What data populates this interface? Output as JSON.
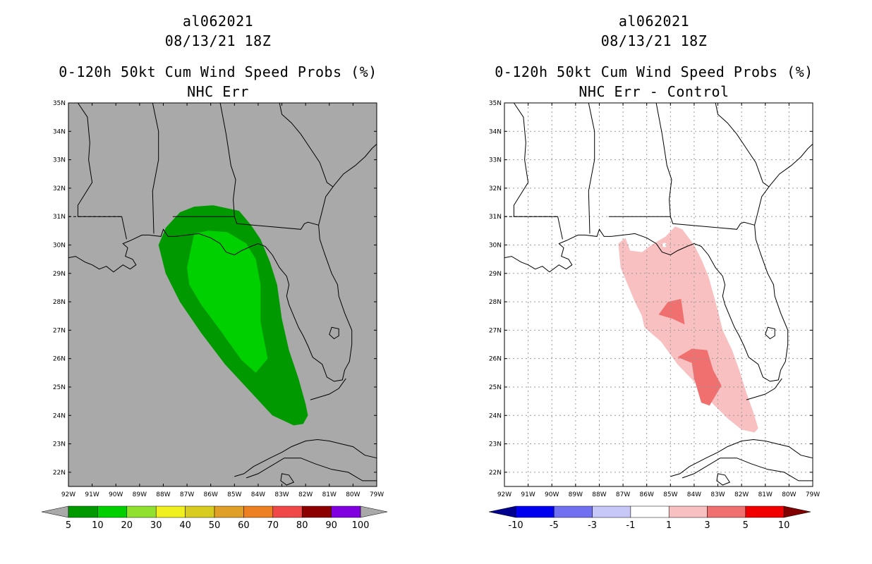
{
  "panels": [
    {
      "storm_id": "al062021",
      "datetime": "08/13/21 18Z",
      "product": "0-120h 50kt Cum Wind Speed Probs (%)",
      "subtitle": "NHC Err",
      "background_color": "#a9a9a9",
      "legend": {
        "colors": [
          "#009a00",
          "#00d000",
          "#90e030",
          "#f0f020",
          "#d8cc20",
          "#e0a028",
          "#ec8022",
          "#f04848",
          "#8c0000",
          "#8000e0"
        ],
        "labels": [
          "5",
          "10",
          "20",
          "30",
          "40",
          "50",
          "60",
          "70",
          "80",
          "90",
          "100"
        ],
        "end_color": "#a9a9a9"
      }
    },
    {
      "storm_id": "al062021",
      "datetime": "08/13/21 18Z",
      "product": "0-120h 50kt Cum Wind Speed Probs (%)",
      "subtitle": "NHC Err - Control",
      "background_color": "#ffffff",
      "legend": {
        "colors": [
          "#0000f0",
          "#7070f0",
          "#c8c8f8",
          "#ffffff",
          "#f8c0c0",
          "#f07070",
          "#f00000"
        ],
        "labels": [
          "-10",
          "-5",
          "-3",
          "-1",
          "1",
          "3",
          "5",
          "10"
        ],
        "start_color": "#000090",
        "end_color": "#800000"
      }
    }
  ],
  "axes": {
    "lat_labels": [
      "35N",
      "34N",
      "33N",
      "32N",
      "31N",
      "30N",
      "29N",
      "28N",
      "27N",
      "26N",
      "25N",
      "24N",
      "23N",
      "22N"
    ],
    "lon_labels": [
      "92W",
      "91W",
      "90W",
      "89W",
      "88W",
      "87W",
      "86W",
      "85W",
      "84W",
      "83W",
      "82W",
      "81W",
      "80W",
      "79W"
    ],
    "lat_range": [
      21.5,
      35
    ],
    "lon_range": [
      -92,
      -79
    ]
  },
  "shading": {
    "prob_5": {
      "color": "#009a00"
    },
    "prob_10": {
      "color": "#00d000"
    },
    "diff_1": {
      "color": "#f8c0c0"
    },
    "diff_3": {
      "color": "#f07070"
    }
  }
}
